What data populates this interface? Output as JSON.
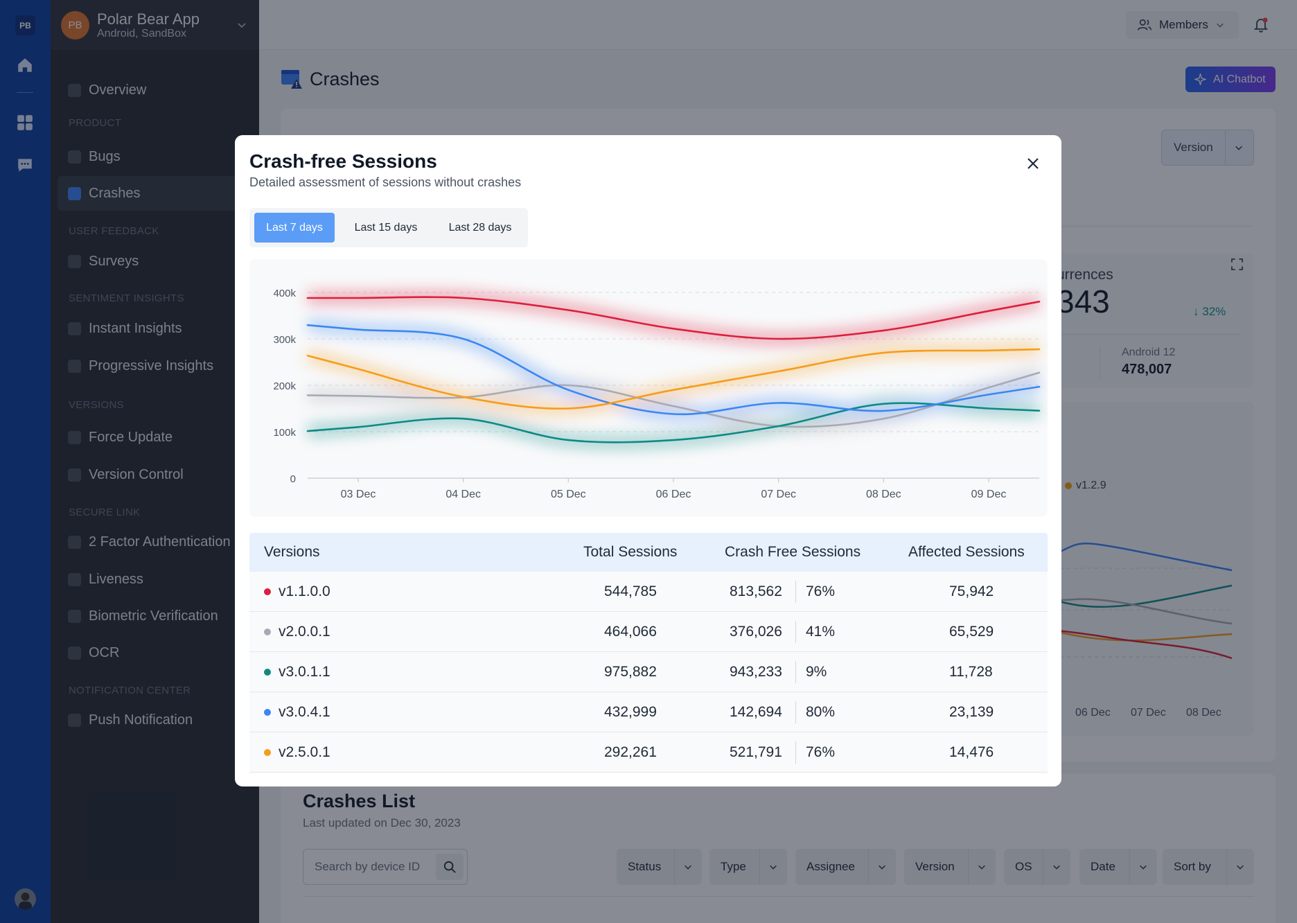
{
  "rail": {
    "logo": "PB",
    "icons": [
      "home-icon",
      "grid-icon",
      "chat-icon"
    ]
  },
  "app": {
    "avatar": "PB",
    "name": "Polar Bear App",
    "platform": "Android, SandBox"
  },
  "sidebar": {
    "overview": "Overview",
    "sections": [
      {
        "heading": "PRODUCT",
        "items": [
          "Bugs",
          "Crashes"
        ]
      },
      {
        "heading": "USER FEEDBACK",
        "items": [
          "Surveys"
        ]
      },
      {
        "heading": "SENTIMENT INSIGHTS",
        "items": [
          "Instant Insights",
          "Progressive Insights"
        ]
      },
      {
        "heading": "VERSIONS",
        "items": [
          "Force Update",
          "Version Control"
        ]
      },
      {
        "heading": "SECURE LINK",
        "items": [
          "2 Factor Authentication",
          "Liveness",
          "Biometric Verification",
          "OCR"
        ]
      },
      {
        "heading": "NOTIFICATION CENTER",
        "items": [
          "Push Notification"
        ]
      }
    ],
    "active_item": "Crashes"
  },
  "topbar": {
    "members_label": "Members"
  },
  "page": {
    "title": "Crashes",
    "ai_button": "AI Chatbot",
    "version_filter": "Version",
    "occurrences_label": "urrences",
    "occurrences_value": "343",
    "occurrences_change": "32%",
    "android_label": "Android 12",
    "android_value": "478,007",
    "legend_fragment": "v1.2.9",
    "bg_chart_xticks": [
      "06 Dec",
      "07 Dec",
      "08 Dec"
    ]
  },
  "crashes_list": {
    "title": "Crashes List",
    "updated": "Last updated on Dec 30, 2023",
    "search_placeholder": "Search by device ID",
    "filters": [
      "Status",
      "Type",
      "Assignee",
      "Version",
      "OS",
      "Date",
      "Sort by"
    ]
  },
  "modal": {
    "title": "Crash-free Sessions",
    "subtitle": "Detailed assessment of sessions without crashes",
    "ranges": [
      "Last 7 days",
      "Last 15 days",
      "Last 28 days"
    ],
    "active_range": "Last 7 days",
    "table": {
      "headers": [
        "Versions",
        "Total Sessions",
        "Crash Free Sessions",
        "Affected Sessions"
      ],
      "rows": [
        {
          "version": "v1.1.0.0",
          "color": "#dc1f3c",
          "total": "544,785",
          "crash_free": "813,562",
          "pct": "76%",
          "affected": "75,942"
        },
        {
          "version": "v2.0.0.1",
          "color": "#a8aab3",
          "total": "464,066",
          "crash_free": "376,026",
          "pct": "41%",
          "affected": "65,529"
        },
        {
          "version": "v3.0.1.1",
          "color": "#0b8a86",
          "total": "975,882",
          "crash_free": "943,233",
          "pct": "9%",
          "affected": "11,728"
        },
        {
          "version": "v3.0.4.1",
          "color": "#3b87f0",
          "total": "432,999",
          "crash_free": "142,694",
          "pct": "80%",
          "affected": "23,139"
        },
        {
          "version": "v2.5.0.1",
          "color": "#f59d1b",
          "total": "292,261",
          "crash_free": "521,791",
          "pct": "76%",
          "affected": "14,476"
        }
      ]
    }
  },
  "chart_data": {
    "type": "line",
    "title": "",
    "xlabel": "",
    "ylabel": "",
    "x": [
      "03 Dec",
      "04 Dec",
      "05 Dec",
      "06 Dec",
      "07 Dec",
      "08 Dec",
      "09 Dec"
    ],
    "yticks": [
      "0",
      "100k",
      "200k",
      "300k",
      "400k"
    ],
    "ylim": [
      0,
      400000
    ],
    "grid": true,
    "series": [
      {
        "color": "#dc1f3c",
        "values": [
          388000,
          388000,
          362000,
          322000,
          300000,
          318000,
          360000
        ]
      },
      {
        "color": "#a8aab3",
        "values": [
          177000,
          174000,
          200000,
          155000,
          112000,
          128000,
          195000
        ]
      },
      {
        "color": "#0b8a86",
        "values": [
          110000,
          128000,
          82000,
          82000,
          112000,
          160000,
          150000
        ]
      },
      {
        "color": "#3b87f0",
        "values": [
          320000,
          300000,
          190000,
          138000,
          162000,
          145000,
          180000
        ]
      },
      {
        "color": "#f59d1b",
        "values": [
          235000,
          175000,
          150000,
          190000,
          230000,
          270000,
          275000
        ]
      }
    ]
  }
}
